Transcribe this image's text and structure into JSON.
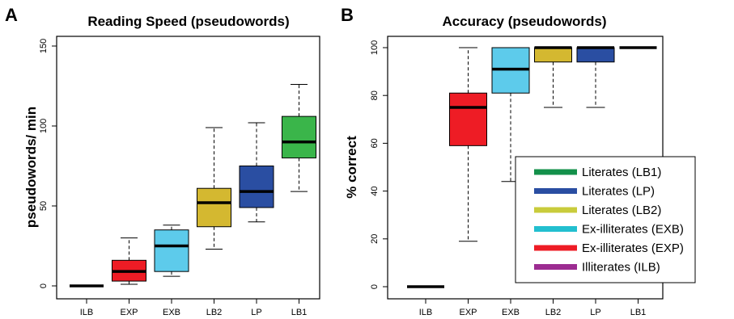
{
  "chart_data": [
    {
      "type": "box",
      "panel_label": "A",
      "title": "Reading Speed (pseudowords)",
      "xlabel": "",
      "ylabel": "pseudowords/ min",
      "ylim": [
        0,
        150
      ],
      "yticks": [
        "0",
        "50",
        "100",
        "150"
      ],
      "yticks_values": [
        0,
        50,
        100,
        150
      ],
      "categories": [
        "ILB",
        "EXP",
        "EXB",
        "LB2",
        "LP",
        "LB1"
      ],
      "colors": [
        "#000000",
        "#ee1c25",
        "#5dcbeb",
        "#d4b830",
        "#2a4ea2",
        "#3ab54a"
      ],
      "boxes": [
        {
          "min": 0,
          "q1": 0,
          "median": 0,
          "q3": 0,
          "max": 0
        },
        {
          "min": 1,
          "q1": 3,
          "median": 9,
          "q3": 16,
          "max": 30
        },
        {
          "min": 6,
          "q1": 9,
          "median": 25,
          "q3": 35,
          "max": 38
        },
        {
          "min": 23,
          "q1": 37,
          "median": 52,
          "q3": 61,
          "max": 99
        },
        {
          "min": 40,
          "q1": 49,
          "median": 59,
          "q3": 75,
          "max": 102
        },
        {
          "min": 59,
          "q1": 80,
          "median": 90,
          "q3": 106,
          "max": 126
        }
      ]
    },
    {
      "type": "box",
      "panel_label": "B",
      "title": "Accuracy (pseudowords)",
      "xlabel": "",
      "ylabel": "% correct",
      "ylim": [
        0,
        100
      ],
      "yticks": [
        "0",
        "20",
        "40",
        "60",
        "80",
        "100"
      ],
      "yticks_values": [
        0,
        20,
        40,
        60,
        80,
        100
      ],
      "categories": [
        "ILB",
        "EXP",
        "EXB",
        "LB2",
        "LP",
        "LB1"
      ],
      "colors": [
        "#000000",
        "#ee1c25",
        "#5dcbeb",
        "#d4b830",
        "#2a4ea2",
        "#000000"
      ],
      "boxes": [
        {
          "min": 0,
          "q1": 0,
          "median": 0,
          "q3": 0,
          "max": 0
        },
        {
          "min": 19,
          "q1": 59,
          "median": 75,
          "q3": 81,
          "max": 100
        },
        {
          "min": 44,
          "q1": 81,
          "median": 91,
          "q3": 100,
          "max": 100
        },
        {
          "min": 75,
          "q1": 94,
          "median": 100,
          "q3": 100,
          "max": 100
        },
        {
          "min": 75,
          "q1": 94,
          "median": 100,
          "q3": 100,
          "max": 100
        },
        {
          "min": 100,
          "q1": 100,
          "median": 100,
          "q3": 100,
          "max": 100
        }
      ],
      "legend": {
        "placement": "bottom-right",
        "entries": [
          {
            "label": "Literates (LB1)",
            "color": "#13904a"
          },
          {
            "label": "Literates (LP)",
            "color": "#2a4ea2"
          },
          {
            "label": "Literates (LB2)",
            "color": "#c9cc3c"
          },
          {
            "label": "Ex-illiterates (EXB)",
            "color": "#22bfcf"
          },
          {
            "label": "Ex-illiterates (EXP)",
            "color": "#ee1c25"
          },
          {
            "label": "Illiterates (ILB)",
            "color": "#9c2c91"
          }
        ]
      }
    }
  ]
}
